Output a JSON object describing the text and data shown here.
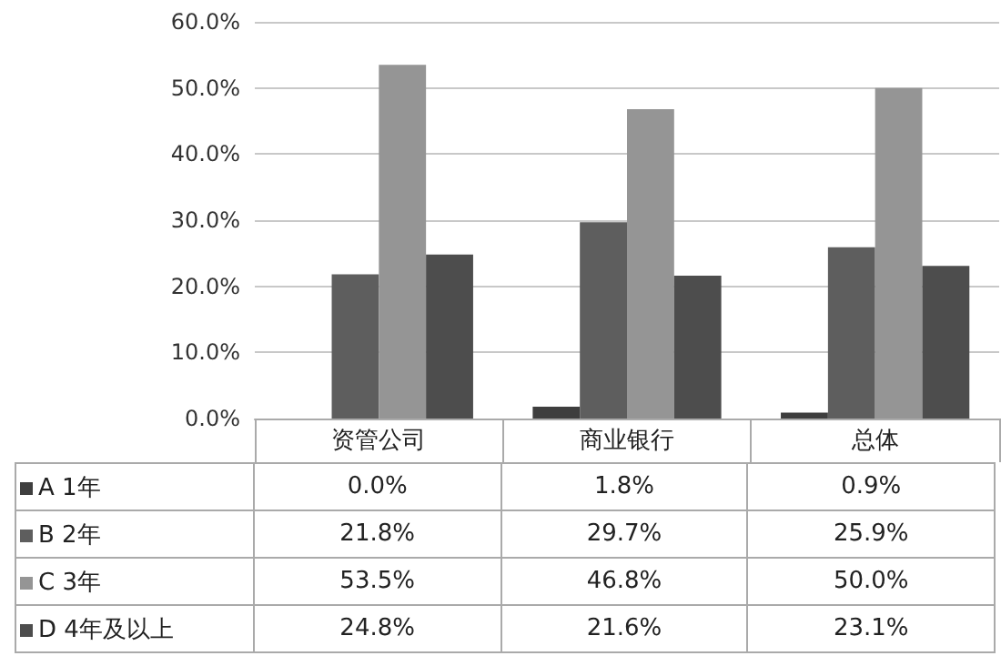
{
  "chart_data": {
    "type": "bar",
    "categories": [
      "资管公司",
      "商业银行",
      "总体"
    ],
    "series": [
      {
        "name": "A 1年",
        "color": "#3e3e3e",
        "values": [
          0.0,
          1.8,
          0.9
        ],
        "value_labels": [
          "0.0%",
          "1.8%",
          "0.9%"
        ]
      },
      {
        "name": "B 2年",
        "color": "#5e5e5e",
        "values": [
          21.8,
          29.7,
          25.9
        ],
        "value_labels": [
          "21.8%",
          "29.7%",
          "25.9%"
        ]
      },
      {
        "name": "C 3年",
        "color": "#959595",
        "values": [
          53.5,
          46.8,
          50.0
        ],
        "value_labels": [
          "53.5%",
          "46.8%",
          "50.0%"
        ]
      },
      {
        "name": "D 4年及以上",
        "color": "#4d4d4d",
        "values": [
          24.8,
          21.6,
          23.1
        ],
        "value_labels": [
          "24.8%",
          "21.6%",
          "23.1%"
        ]
      }
    ],
    "ylim": [
      0,
      60
    ],
    "yticks": [
      {
        "value": 0,
        "label": "0.0%"
      },
      {
        "value": 10,
        "label": "10.0%"
      },
      {
        "value": 20,
        "label": "20.0%"
      },
      {
        "value": 30,
        "label": "30.0%"
      },
      {
        "value": 40,
        "label": "40.0%"
      },
      {
        "value": 50,
        "label": "50.0%"
      },
      {
        "value": 60,
        "label": "60.0%"
      }
    ],
    "grid": "y",
    "legend": "bottom"
  }
}
